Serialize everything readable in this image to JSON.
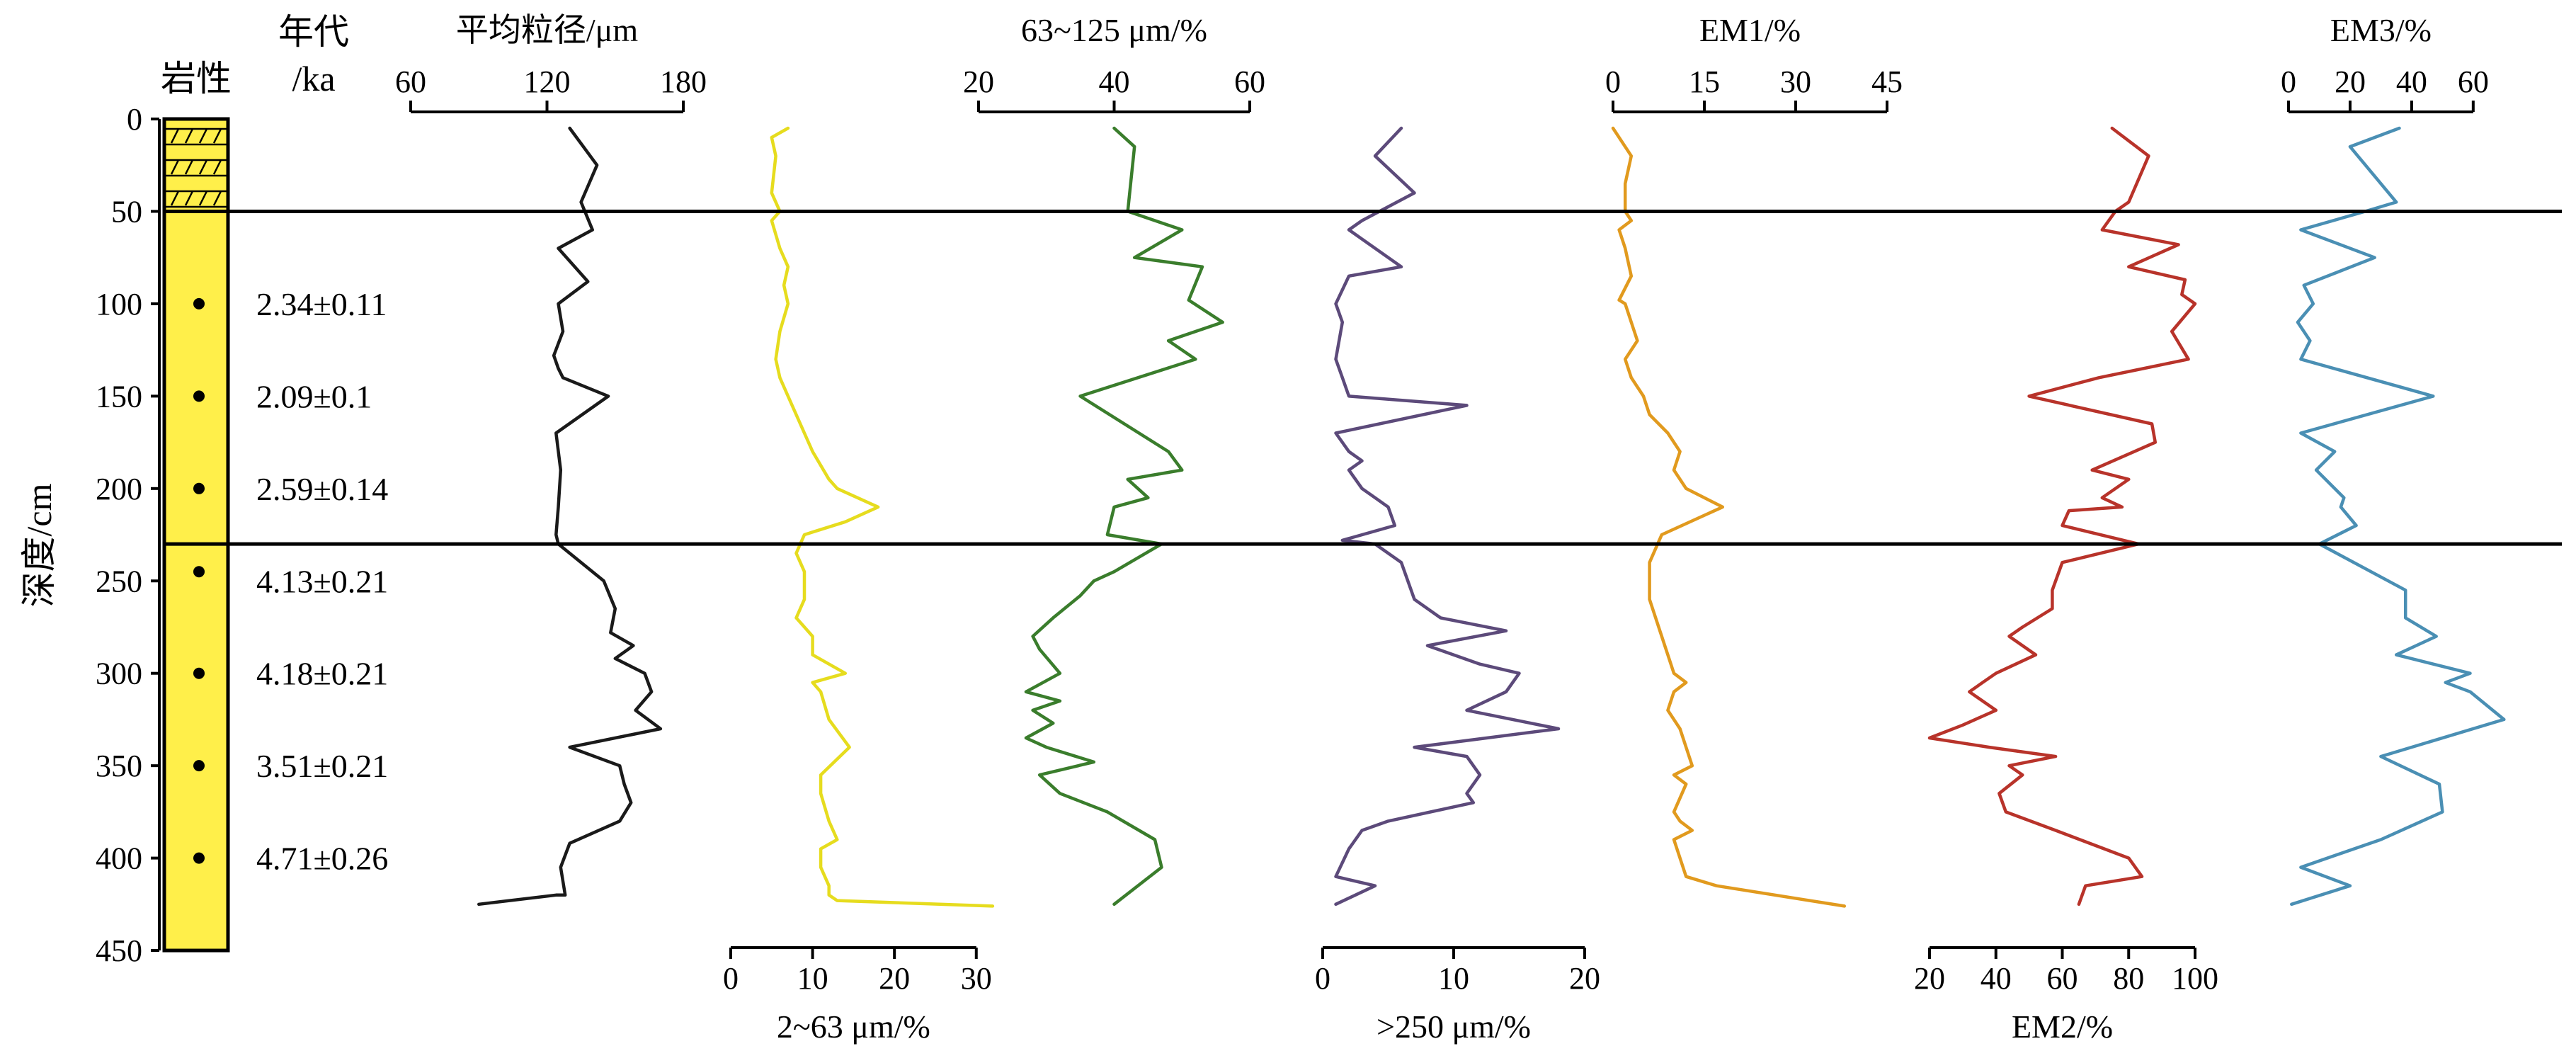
{
  "depth_axis": {
    "title": "深度/cm",
    "ticks": [
      0,
      50,
      100,
      150,
      200,
      250,
      300,
      350,
      400,
      450
    ],
    "range": [
      0,
      450
    ]
  },
  "lithology": {
    "title": "岩性",
    "fill_color": "#ffef4a",
    "hatched_interval_cm": [
      0,
      50
    ],
    "dot_depths_cm": [
      100,
      150,
      200,
      245,
      300,
      350,
      400
    ],
    "bottom_cm": 450
  },
  "ages": {
    "title_line1": "年代",
    "title_line2": "/ka",
    "items": [
      {
        "label": "2.34±0.11",
        "depth": 100
      },
      {
        "label": "2.09±0.1",
        "depth": 150
      },
      {
        "label": "2.59±0.14",
        "depth": 200
      },
      {
        "label": "4.13±0.21",
        "depth": 250
      },
      {
        "label": "4.18±0.21",
        "depth": 300
      },
      {
        "label": "3.51±0.21",
        "depth": 350
      },
      {
        "label": "4.71±0.26",
        "depth": 400
      }
    ]
  },
  "boundaries_cm": [
    50,
    230
  ],
  "chart_data": [
    {
      "type": "line",
      "name": "平均粒径/μm",
      "axis_position": "top",
      "ticks": [
        60,
        120,
        180
      ],
      "xlim": [
        60,
        180
      ],
      "color": "#1a1a1a",
      "x": [
        130,
        142,
        135,
        140,
        125,
        138,
        125,
        127,
        123,
        125,
        127,
        147,
        124,
        126,
        125,
        124,
        125,
        145,
        150,
        148,
        158,
        150,
        163,
        166,
        159,
        170,
        130,
        152,
        154,
        157,
        152,
        130,
        126,
        128,
        124,
        90
      ],
      "y": [
        5,
        25,
        45,
        60,
        70,
        88,
        100,
        115,
        128,
        135,
        140,
        150,
        170,
        190,
        210,
        225,
        230,
        250,
        265,
        278,
        285,
        292,
        300,
        310,
        320,
        330,
        340,
        350,
        360,
        370,
        380,
        392,
        405,
        420,
        420,
        425
      ]
    },
    {
      "type": "line",
      "name": "2~63 μm/%",
      "axis_position": "bottom",
      "ticks": [
        0,
        10,
        20,
        30
      ],
      "xlim": [
        0,
        34
      ],
      "color": "#e6dc1e",
      "x": [
        7,
        5,
        5.5,
        5,
        6,
        5,
        6,
        7,
        6.5,
        7,
        6,
        5.5,
        6,
        7,
        9,
        10,
        12,
        13,
        18,
        14,
        9,
        8,
        9,
        9,
        8,
        10,
        10,
        14,
        10,
        11,
        12,
        14.5,
        11,
        11,
        12,
        13,
        11,
        11,
        12,
        12,
        13,
        32
      ],
      "y": [
        5,
        10,
        20,
        40,
        50,
        55,
        70,
        80,
        90,
        100,
        115,
        130,
        140,
        150,
        170,
        180,
        195,
        200,
        210,
        218,
        225,
        235,
        245,
        260,
        270,
        280,
        290,
        300,
        305,
        310,
        325,
        340,
        355,
        365,
        380,
        390,
        395,
        405,
        415,
        420,
        423,
        426
      ]
    },
    {
      "type": "line",
      "name": "63~125 μm/%",
      "axis_position": "top",
      "ticks": [
        20,
        40,
        60
      ],
      "xlim": [
        20,
        60
      ],
      "color": "#3a7d2c",
      "x": [
        40,
        43,
        42,
        50,
        43,
        53,
        51,
        56,
        48,
        52,
        35,
        48,
        50,
        42,
        45,
        40,
        39,
        47,
        40,
        37,
        35,
        31,
        28,
        29,
        32,
        27,
        32,
        28,
        31,
        27,
        30,
        37,
        29,
        32,
        39,
        46,
        47,
        40
      ],
      "y": [
        5,
        15,
        50,
        60,
        75,
        80,
        98,
        110,
        120,
        130,
        150,
        180,
        190,
        195,
        205,
        210,
        225,
        230,
        245,
        250,
        258,
        270,
        280,
        287,
        300,
        310,
        315,
        320,
        327,
        335,
        340,
        348,
        355,
        365,
        375,
        390,
        405,
        425
      ]
    },
    {
      "type": "line",
      "name": ">250 μm/%",
      "axis_position": "bottom",
      "ticks": [
        0,
        10,
        20
      ],
      "xlim": [
        0,
        20
      ],
      "color": "#5c4a7a",
      "x": [
        6,
        4,
        7,
        3,
        2,
        3,
        6,
        2,
        1,
        1.5,
        1,
        1.5,
        2,
        11,
        1,
        2,
        3,
        2,
        3,
        4,
        5,
        5.5,
        1.5,
        4,
        6,
        7,
        9,
        14,
        8,
        12,
        15,
        14,
        11,
        18,
        7,
        11,
        12,
        11,
        11.5,
        5,
        3,
        2,
        1,
        4,
        1
      ],
      "y": [
        5,
        20,
        40,
        55,
        60,
        65,
        80,
        85,
        100,
        110,
        130,
        140,
        150,
        155,
        170,
        180,
        185,
        190,
        200,
        205,
        210,
        220,
        228,
        230,
        240,
        260,
        270,
        277,
        285,
        295,
        300,
        310,
        320,
        330,
        340,
        345,
        355,
        365,
        370,
        380,
        385,
        395,
        410,
        415,
        425
      ]
    },
    {
      "type": "line",
      "name": "EM1/%",
      "axis_position": "top",
      "ticks": [
        0,
        15,
        30,
        45
      ],
      "xlim": [
        0,
        45
      ],
      "color": "#e19a1e",
      "x": [
        0,
        3,
        2,
        2,
        3,
        1,
        2,
        3,
        1,
        2,
        4,
        2,
        3,
        5,
        6,
        9,
        11,
        10,
        12,
        18,
        8,
        6,
        6,
        8,
        9,
        10,
        12,
        10,
        9,
        11,
        12,
        13,
        10,
        12,
        10,
        11,
        13,
        10,
        11,
        12,
        17,
        38
      ],
      "y": [
        5,
        20,
        35,
        50,
        55,
        60,
        70,
        85,
        98,
        100,
        120,
        130,
        140,
        150,
        160,
        170,
        180,
        190,
        200,
        210,
        225,
        240,
        260,
        280,
        290,
        300,
        305,
        310,
        320,
        330,
        340,
        350,
        355,
        360,
        375,
        380,
        385,
        390,
        400,
        410,
        415,
        426
      ]
    },
    {
      "type": "line",
      "name": "EM2/%",
      "axis_position": "bottom",
      "ticks": [
        20,
        40,
        60,
        80,
        100
      ],
      "xlim": [
        20,
        100
      ],
      "color": "#b8332a",
      "x": [
        75,
        86,
        80,
        76,
        72,
        95,
        80,
        97,
        96,
        100,
        93,
        98,
        71,
        50,
        87,
        88,
        69,
        80,
        72,
        78,
        62,
        60,
        83,
        60,
        57,
        57,
        48,
        44,
        52,
        40,
        36,
        32,
        40,
        30,
        20,
        38,
        58,
        44,
        48,
        41,
        43,
        58,
        80,
        84,
        67,
        65
      ],
      "y": [
        5,
        20,
        45,
        50,
        60,
        68,
        80,
        87,
        95,
        100,
        115,
        130,
        140,
        150,
        165,
        175,
        190,
        195,
        205,
        210,
        212,
        220,
        230,
        240,
        255,
        265,
        275,
        280,
        290,
        300,
        305,
        310,
        320,
        328,
        335,
        340,
        345,
        350,
        355,
        365,
        375,
        385,
        400,
        410,
        415,
        425
      ]
    },
    {
      "type": "line",
      "name": "EM3/%",
      "axis_position": "top",
      "ticks": [
        0,
        20,
        40,
        60
      ],
      "xlim": [
        0,
        72
      ],
      "color": "#4a8fb4",
      "x": [
        36,
        20,
        35,
        25,
        4,
        28,
        5,
        8,
        3,
        7,
        4,
        47,
        4,
        15,
        9,
        18,
        17,
        22,
        10,
        38,
        38,
        48,
        35,
        59,
        51,
        59,
        70,
        30,
        49,
        50,
        30,
        4,
        20,
        1
      ],
      "y": [
        5,
        15,
        45,
        50,
        60,
        75,
        90,
        100,
        110,
        120,
        130,
        150,
        170,
        180,
        190,
        205,
        210,
        220,
        230,
        255,
        270,
        280,
        290,
        300,
        305,
        310,
        325,
        345,
        360,
        375,
        390,
        405,
        415,
        425
      ]
    }
  ]
}
